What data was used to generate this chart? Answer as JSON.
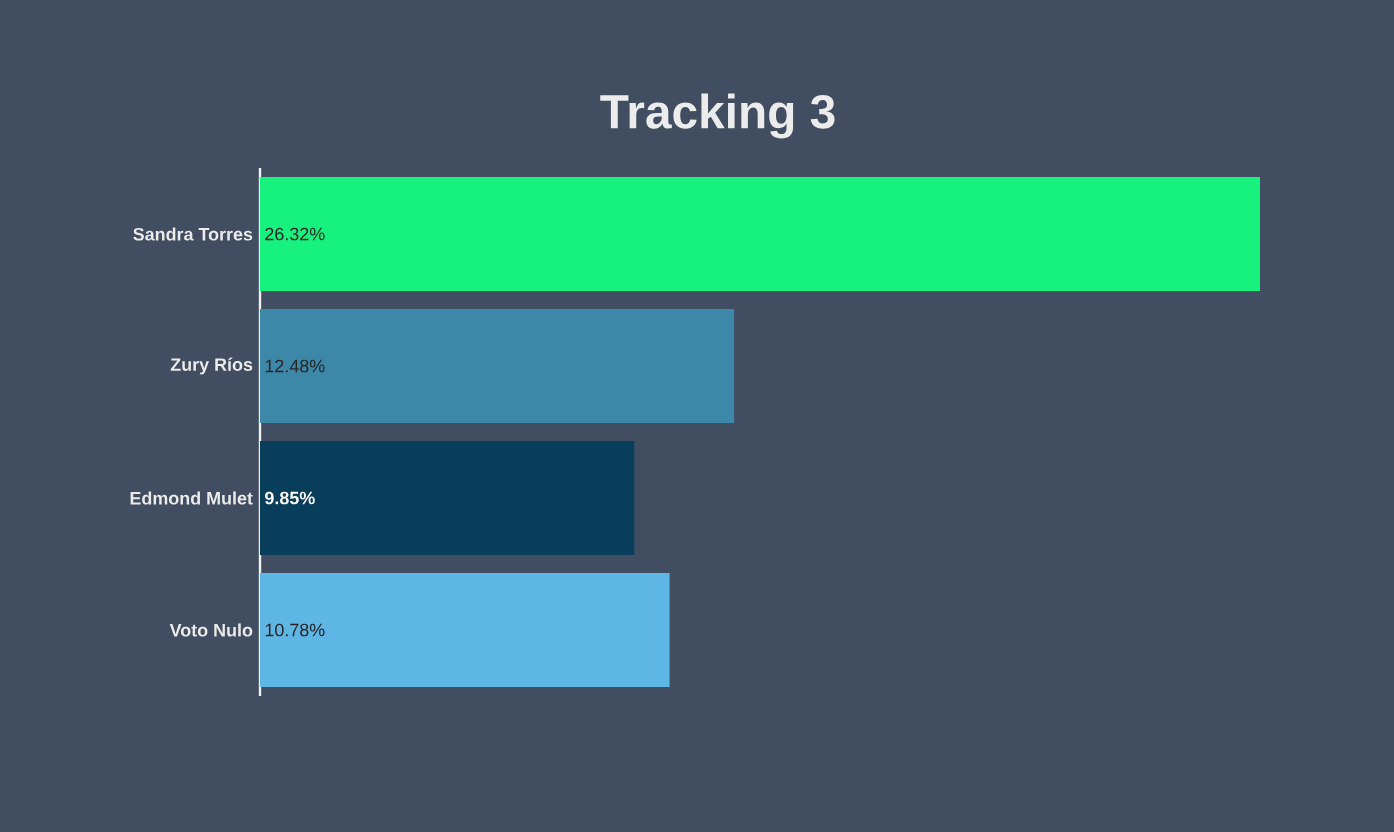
{
  "chart_data": {
    "type": "bar",
    "orientation": "horizontal",
    "title": "Tracking 3",
    "categories": [
      "Sandra Torres",
      "Zury Ríos",
      "Edmond Mulet",
      "Voto Nulo"
    ],
    "values": [
      26.32,
      12.48,
      9.85,
      10.78
    ],
    "colors": [
      "#17f27e",
      "#3d87a8",
      "#083d5c",
      "#5eb6e4"
    ],
    "value_labels": [
      "26.32%",
      "12.48%",
      "9.85%",
      "10.78%"
    ]
  }
}
